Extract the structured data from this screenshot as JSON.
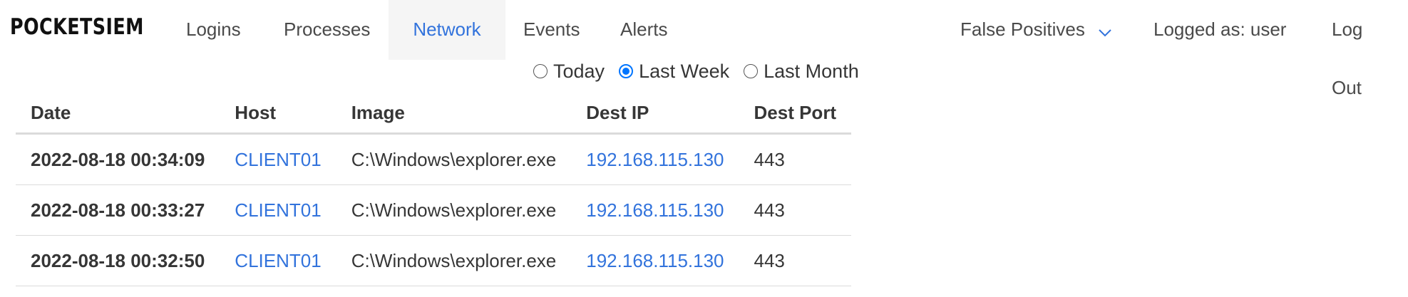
{
  "brand": "POCKETSIEM",
  "nav": {
    "logins": "Logins",
    "processes": "Processes",
    "network": "Network",
    "events": "Events",
    "alerts": "Alerts",
    "false_positives": "False Positives",
    "logged_as": "Logged as: user",
    "logout": "Log Out"
  },
  "filter": {
    "options": [
      "Today",
      "Last Week",
      "Last Month"
    ],
    "selected": "Last Week"
  },
  "table": {
    "columns": [
      "Date",
      "Host",
      "Image",
      "Dest IP",
      "Dest Port"
    ],
    "rows": [
      [
        "2022-08-18 00:34:09",
        "CLIENT01",
        "C:\\Windows\\explorer.exe",
        "192.168.115.130",
        "443"
      ],
      [
        "2022-08-18 00:33:27",
        "CLIENT01",
        "C:\\Windows\\explorer.exe",
        "192.168.115.130",
        "443"
      ],
      [
        "2022-08-18 00:32:50",
        "CLIENT01",
        "C:\\Windows\\explorer.exe",
        "192.168.115.130",
        "443"
      ]
    ]
  },
  "colors": {
    "link": "#3273dc",
    "active_tab_bg": "#f5f5f5",
    "radio_checked": "#0075ff"
  }
}
